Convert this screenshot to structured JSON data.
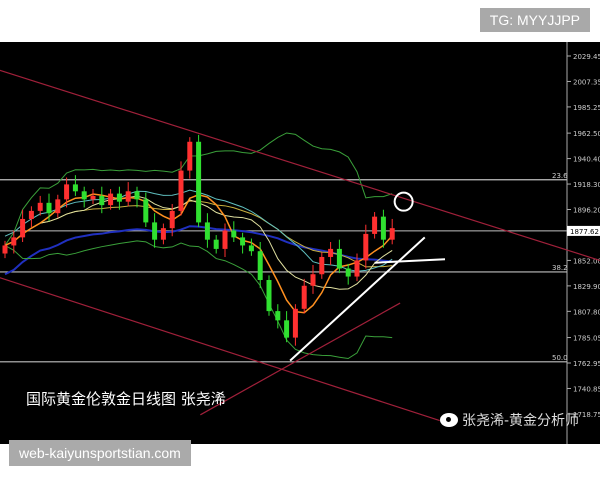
{
  "tg_label": "TG: MYYJJPP",
  "caption": "国际黄金伦敦金日线图  张尧浠",
  "weibo_label": "张尧浠-黄金分析师",
  "watermark": "web-kaiyunsportstian.com",
  "colors": {
    "up": "#ff3030",
    "down": "#30e030",
    "background": "#000000",
    "fib_line": "#bfbfbf",
    "channel": "#a0203a",
    "trend": "#ffffff"
  },
  "chart_data": {
    "type": "candlestick",
    "ylim": [
      1718.75,
      2035
    ],
    "y_ticks": [
      "2029.45",
      "2007.35",
      "1985.25",
      "1962.50",
      "1940.40",
      "1918.30",
      "1896.20",
      "1852.00",
      "1829.90",
      "1807.80",
      "1785.05",
      "1762.95",
      "1740.85",
      "1718.75"
    ],
    "current_price": "1877.62",
    "fib_levels": [
      {
        "label": "23.6",
        "price": 1922
      },
      {
        "label": "38.2",
        "price": 1842
      },
      {
        "label": "50.0",
        "price": 1764
      }
    ],
    "closes": [
      1865,
      1872,
      1888,
      1895,
      1902,
      1893,
      1905,
      1918,
      1912,
      1905,
      1908,
      1900,
      1910,
      1903,
      1912,
      1905,
      1885,
      1870,
      1880,
      1895,
      1930,
      1955,
      1885,
      1870,
      1862,
      1878,
      1872,
      1865,
      1860,
      1835,
      1808,
      1800,
      1785,
      1810,
      1830,
      1840,
      1855,
      1862,
      1845,
      1838,
      1852,
      1875,
      1890,
      1870,
      1880
    ],
    "first_open": 1858,
    "trend_lines": [
      {
        "kind": "channel",
        "from": [
          -0.6,
          2017
        ],
        "to": [
          67.6,
          1852
        ]
      },
      {
        "kind": "channel",
        "from": [
          -0.6,
          1837
        ],
        "to": [
          49.4,
          1713
        ]
      },
      {
        "kind": "channel",
        "from": [
          22.2,
          1718
        ],
        "to": [
          44.9,
          1815
        ]
      },
      {
        "kind": "trend",
        "from": [
          32.4,
          1765
        ],
        "to": [
          47.7,
          1872
        ]
      },
      {
        "kind": "trend",
        "from": [
          42,
          1850
        ],
        "to": [
          50,
          1853
        ]
      }
    ],
    "marker_circle": {
      "index": 45.3,
      "price": 1903
    }
  }
}
